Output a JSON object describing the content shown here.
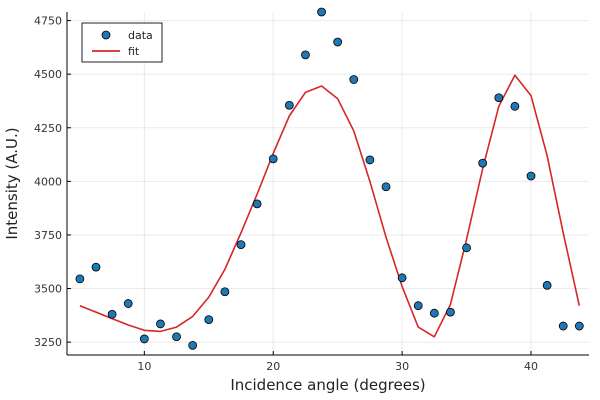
{
  "chart_data": {
    "type": "scatter",
    "xlabel": "Incidence angle (degrees)",
    "ylabel": "Intensity (A.U.)",
    "xlim": [
      4,
      44.5
    ],
    "ylim": [
      3190,
      4790
    ],
    "xticks": [
      10,
      20,
      30,
      40
    ],
    "yticks": [
      3250,
      3500,
      3750,
      4000,
      4250,
      4500,
      4750
    ],
    "grid": true,
    "legend_position": "top-left",
    "series": [
      {
        "name": "data",
        "kind": "scatter",
        "color": "#1f77b4",
        "x": [
          5.0,
          6.25,
          7.5,
          8.75,
          10.0,
          11.25,
          12.5,
          13.75,
          15.0,
          16.25,
          17.5,
          18.75,
          20.0,
          21.25,
          22.5,
          23.75,
          25.0,
          26.25,
          27.5,
          28.75,
          30.0,
          31.25,
          32.5,
          33.75,
          35.0,
          36.25,
          37.5,
          38.75,
          40.0,
          41.25,
          42.5,
          43.75
        ],
        "y": [
          3545,
          3600,
          3380,
          3430,
          3265,
          3335,
          3275,
          3235,
          3355,
          3485,
          3705,
          3895,
          4105,
          4355,
          4590,
          4790,
          4650,
          4475,
          4100,
          3975,
          3550,
          3420,
          3385,
          3390,
          3690,
          4085,
          4390,
          4350,
          4025,
          3515,
          3325,
          3325
        ]
      },
      {
        "name": "fit",
        "kind": "line",
        "color": "#d62728",
        "x": [
          5.0,
          6.25,
          7.5,
          8.75,
          10.0,
          11.25,
          12.5,
          13.75,
          15.0,
          16.25,
          17.5,
          18.75,
          20.0,
          21.25,
          22.5,
          23.75,
          25.0,
          26.25,
          27.5,
          28.75,
          30.0,
          31.25,
          32.5,
          33.75,
          35.0,
          36.25,
          37.5,
          38.75,
          40.0,
          41.25,
          42.5,
          43.75
        ],
        "y": [
          3420,
          3390,
          3360,
          3330,
          3305,
          3300,
          3320,
          3370,
          3460,
          3590,
          3760,
          3940,
          4130,
          4305,
          4415,
          4445,
          4385,
          4235,
          4000,
          3740,
          3510,
          3320,
          3275,
          3425,
          3730,
          4060,
          4350,
          4495,
          4400,
          4120,
          3760,
          3420
        ]
      }
    ]
  }
}
